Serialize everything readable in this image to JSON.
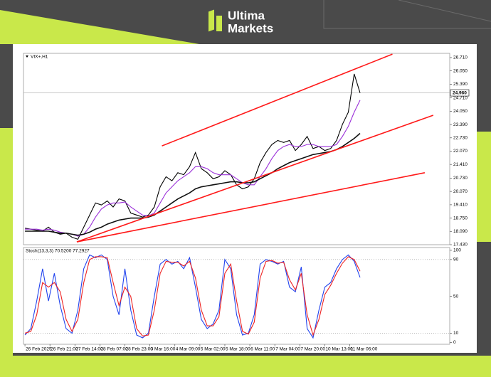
{
  "brand": {
    "name_1": "Ultima",
    "name_2": "Markets"
  },
  "chart_data": [
    {
      "type": "line",
      "title": "VIX+,H1",
      "x": [
        0,
        4,
        8,
        12,
        16,
        20,
        24,
        28,
        32,
        36,
        40,
        44,
        48,
        52,
        56,
        60,
        64,
        68,
        72,
        76,
        80,
        84,
        88,
        92,
        96,
        100,
        104,
        108,
        112,
        116,
        120,
        124,
        128,
        132,
        136,
        140,
        144,
        148,
        152,
        156,
        160,
        164,
        168,
        172,
        176,
        180,
        184,
        188,
        192,
        196,
        200,
        204,
        208,
        212,
        216,
        220,
        224,
        228
      ],
      "series": [
        {
          "color": "#000000",
          "values": [
            18.25,
            18.2,
            18.15,
            18.1,
            18.3,
            18.05,
            17.95,
            18.0,
            17.8,
            17.7,
            18.3,
            18.9,
            19.5,
            19.4,
            19.6,
            19.3,
            19.7,
            19.6,
            19.0,
            18.9,
            18.8,
            18.9,
            19.3,
            20.3,
            20.8,
            20.6,
            21.0,
            20.9,
            21.3,
            22.0,
            21.2,
            21.0,
            20.7,
            20.8,
            21.1,
            20.9,
            20.4,
            20.2,
            20.3,
            20.7,
            21.5,
            22.0,
            22.4,
            22.6,
            22.5,
            22.6,
            22.1,
            22.4,
            22.8,
            22.2,
            22.3,
            22.1,
            22.2,
            22.6,
            23.4,
            24.0,
            25.9,
            24.96
          ]
        },
        {
          "color": "#9b30d9",
          "values": [
            18.2,
            18.2,
            18.2,
            18.15,
            18.2,
            18.15,
            18.05,
            18.0,
            17.95,
            17.85,
            17.95,
            18.3,
            18.8,
            19.2,
            19.4,
            19.5,
            19.5,
            19.55,
            19.3,
            19.1,
            18.9,
            18.85,
            19.0,
            19.5,
            20.0,
            20.3,
            20.6,
            20.8,
            21.0,
            21.3,
            21.3,
            21.2,
            21.0,
            20.9,
            20.9,
            20.9,
            20.7,
            20.5,
            20.4,
            20.4,
            20.8,
            21.2,
            21.7,
            22.1,
            22.3,
            22.4,
            22.3,
            22.3,
            22.4,
            22.4,
            22.3,
            22.3,
            22.3,
            22.4,
            22.8,
            23.3,
            24.0,
            24.6
          ]
        },
        {
          "color": "#111111",
          "values": [
            18.1,
            18.1,
            18.1,
            18.1,
            18.1,
            18.05,
            18.0,
            18.0,
            17.95,
            17.9,
            17.95,
            18.05,
            18.2,
            18.3,
            18.45,
            18.55,
            18.65,
            18.7,
            18.75,
            18.75,
            18.75,
            18.8,
            18.9,
            19.1,
            19.3,
            19.5,
            19.7,
            19.85,
            20.0,
            20.2,
            20.3,
            20.35,
            20.4,
            20.45,
            20.5,
            20.55,
            20.55,
            20.5,
            20.5,
            20.55,
            20.7,
            20.85,
            21.0,
            21.2,
            21.35,
            21.5,
            21.6,
            21.7,
            21.8,
            21.9,
            21.95,
            22.0,
            22.05,
            22.15,
            22.3,
            22.5,
            22.7,
            22.95
          ]
        }
      ],
      "trendlines": [
        {
          "color": "#ff1a1a",
          "x": [
            93.2,
            250
          ],
          "values": [
            22.33,
            26.88
          ]
        },
        {
          "color": "#ff1a1a",
          "x": [
            35.3,
            277.8
          ],
          "values": [
            17.57,
            23.85
          ]
        },
        {
          "color": "#ff1a1a",
          "x": [
            35.3,
            272
          ],
          "values": [
            17.57,
            21.0
          ]
        }
      ],
      "last_price": {
        "value": 24.96,
        "label": "24.960"
      },
      "xlim": [
        -1,
        289
      ],
      "ylim": [
        17.43,
        26.92
      ],
      "yticks": [
        {
          "value": 26.71,
          "label": "26.710"
        },
        {
          "value": 26.05,
          "label": "26.050"
        },
        {
          "value": 25.39,
          "label": "25.390"
        },
        {
          "value": 24.71,
          "label": "24.710"
        },
        {
          "value": 24.05,
          "label": "24.050"
        },
        {
          "value": 23.39,
          "label": "23.390"
        },
        {
          "value": 22.73,
          "label": "22.730"
        },
        {
          "value": 22.07,
          "label": "22.070"
        },
        {
          "value": 21.41,
          "label": "21.410"
        },
        {
          "value": 20.73,
          "label": "20.730"
        },
        {
          "value": 20.07,
          "label": "20.070"
        },
        {
          "value": 19.41,
          "label": "19.410"
        },
        {
          "value": 18.75,
          "label": "18.750"
        },
        {
          "value": 18.09,
          "label": "18.090"
        },
        {
          "value": 17.43,
          "label": "17.430"
        }
      ]
    },
    {
      "type": "line",
      "title": "Stoch(13,3,3) 70.5200 77.2927",
      "x": [
        0,
        4,
        8,
        12,
        16,
        20,
        24,
        28,
        32,
        36,
        40,
        44,
        48,
        52,
        56,
        60,
        64,
        68,
        72,
        76,
        80,
        84,
        88,
        92,
        96,
        100,
        104,
        108,
        112,
        116,
        120,
        124,
        128,
        132,
        136,
        140,
        144,
        148,
        152,
        156,
        160,
        164,
        168,
        172,
        176,
        180,
        184,
        188,
        192,
        196,
        200,
        204,
        208,
        212,
        216,
        220,
        224,
        228
      ],
      "series": [
        {
          "color": "#2244ee",
          "values": [
            8,
            15,
            45,
            80,
            45,
            75,
            40,
            15,
            10,
            35,
            80,
            95,
            92,
            95,
            90,
            50,
            30,
            80,
            35,
            8,
            5,
            10,
            50,
            85,
            90,
            85,
            88,
            80,
            92,
            60,
            25,
            15,
            20,
            35,
            90,
            80,
            30,
            8,
            10,
            30,
            85,
            90,
            88,
            85,
            88,
            60,
            55,
            82,
            15,
            5,
            35,
            60,
            65,
            80,
            90,
            95,
            88,
            70.52
          ]
        },
        {
          "color": "#ee2222",
          "values": [
            10,
            12,
            30,
            65,
            60,
            65,
            55,
            25,
            12,
            25,
            65,
            90,
            93,
            93,
            92,
            65,
            40,
            60,
            50,
            15,
            7,
            8,
            35,
            75,
            88,
            87,
            87,
            83,
            88,
            70,
            35,
            18,
            18,
            28,
            75,
            85,
            45,
            12,
            9,
            22,
            70,
            88,
            89,
            86,
            87,
            68,
            57,
            75,
            30,
            8,
            25,
            52,
            62,
            75,
            86,
            93,
            90,
            77.2927
          ]
        }
      ],
      "levels": [
        10,
        90
      ],
      "xlim": [
        -1,
        289
      ],
      "ylim": [
        -2,
        103
      ],
      "yticks": [
        0,
        10,
        50,
        90,
        100
      ],
      "xticks": [
        {
          "value": 0,
          "label": "26 Feb 2025"
        },
        {
          "value": 17,
          "label": "26 Feb 21:00"
        },
        {
          "value": 34,
          "label": "27 Feb 14:00"
        },
        {
          "value": 51,
          "label": "28 Feb 07:00"
        },
        {
          "value": 68,
          "label": "28 Feb 23:00"
        },
        {
          "value": 85,
          "label": "3 Mar 16:00"
        },
        {
          "value": 102,
          "label": "4 Mar 09:00"
        },
        {
          "value": 119,
          "label": "5 Mar 02:00"
        },
        {
          "value": 136,
          "label": "5 Mar 18:00"
        },
        {
          "value": 153,
          "label": "6 Mar 11:00"
        },
        {
          "value": 170,
          "label": "7 Mar 04:00"
        },
        {
          "value": 187,
          "label": "7 Mar 20:00"
        },
        {
          "value": 204,
          "label": "10 Mar 13:00"
        },
        {
          "value": 221,
          "label": "11 Mar 06:00"
        }
      ]
    }
  ]
}
